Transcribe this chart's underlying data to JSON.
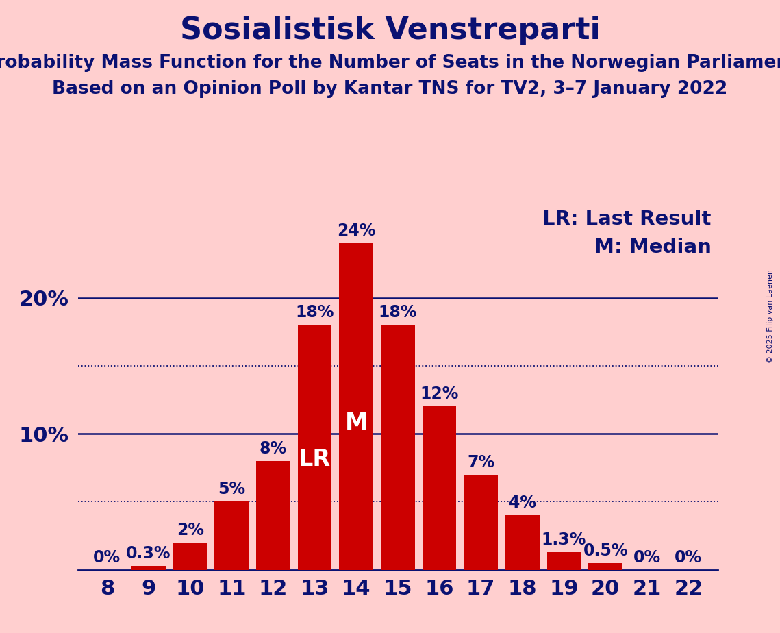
{
  "title": "Sosialistisk Venstreparti",
  "subtitle1": "Probability Mass Function for the Number of Seats in the Norwegian Parliament",
  "subtitle2": "Based on an Opinion Poll by Kantar TNS for TV2, 3–7 January 2022",
  "copyright": "© 2025 Filip van Laenen",
  "seats": [
    8,
    9,
    10,
    11,
    12,
    13,
    14,
    15,
    16,
    17,
    18,
    19,
    20,
    21,
    22
  ],
  "probabilities": [
    0.0,
    0.3,
    2.0,
    5.0,
    8.0,
    18.0,
    24.0,
    18.0,
    12.0,
    7.0,
    4.0,
    1.3,
    0.5,
    0.0,
    0.0
  ],
  "bar_color": "#CC0000",
  "background_color": "#FFCFCF",
  "text_color_dark": "#0A1172",
  "text_color_white": "#FFFFFF",
  "title_fontsize": 32,
  "subtitle_fontsize": 19,
  "axis_tick_fontsize": 22,
  "bar_label_fontsize": 17,
  "legend_fontsize": 21,
  "copyright_fontsize": 8,
  "lr_seat": 13,
  "median_seat": 14,
  "ylim": [
    0,
    27
  ],
  "solid_gridlines": [
    10.0,
    20.0
  ],
  "dotted_gridlines": [
    5.0,
    15.0
  ],
  "legend_lr": "LR: Last Result",
  "legend_m": "M: Median",
  "bar_width": 0.82
}
